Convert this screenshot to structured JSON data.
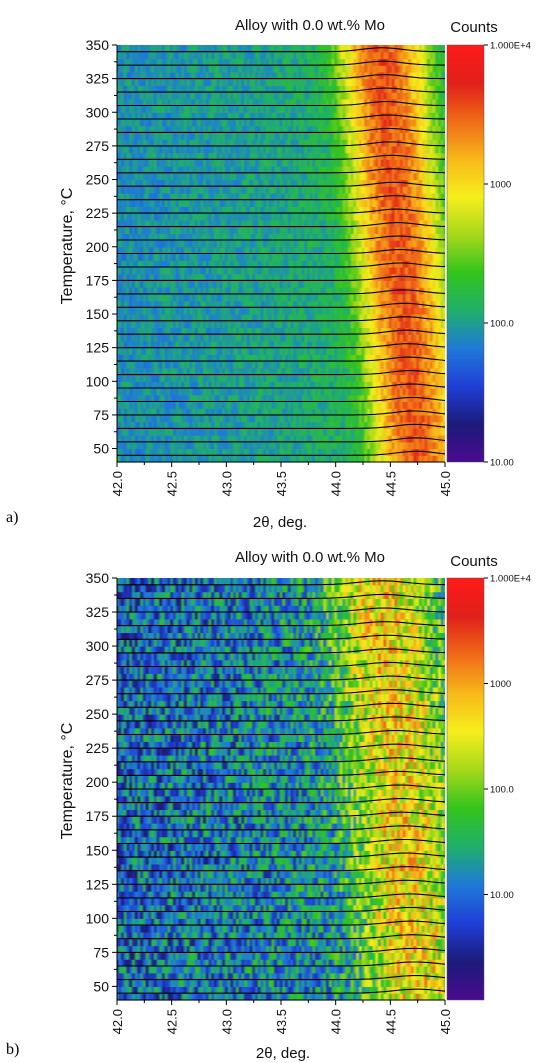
{
  "chart_data": [
    {
      "panel_label": "a)",
      "type": "heatmap",
      "title": "Alloy with 0.0 wt.% Mo",
      "xlabel": "2θ, deg.",
      "ylabel": "Temperature, °C",
      "xlim": [
        42.0,
        45.0
      ],
      "ylim": [
        40,
        350
      ],
      "x_ticks": [
        "42.0",
        "42.5",
        "43.0",
        "43.5",
        "44.0",
        "44.5",
        "45.0"
      ],
      "y_ticks": [
        "50",
        "75",
        "100",
        "125",
        "150",
        "175",
        "200",
        "225",
        "250",
        "275",
        "300",
        "325",
        "350"
      ],
      "y_tick_values": [
        50,
        75,
        100,
        125,
        150,
        175,
        200,
        225,
        250,
        275,
        300,
        325,
        350
      ],
      "colorbar": {
        "title": "Counts",
        "scale": "log",
        "range": [
          10,
          10000
        ],
        "labels": [
          "1.000E+4",
          "1000",
          "100.0",
          "10.00"
        ],
        "label_values": [
          10000,
          1000,
          100,
          10
        ]
      },
      "scan_temperatures": [
        45,
        55,
        65,
        75,
        85,
        95,
        105,
        115,
        125,
        135,
        145,
        155,
        165,
        175,
        185,
        195,
        205,
        215,
        225,
        235,
        245,
        255,
        265,
        275,
        285,
        295,
        305,
        315,
        325,
        335,
        345
      ],
      "peak": {
        "center_at_low_T": 44.75,
        "center_at_high_T": 44.42,
        "width_deg": 0.18,
        "peak_counts": 3000,
        "background_counts": 80
      },
      "grid": false
    },
    {
      "panel_label": "b)",
      "type": "heatmap",
      "title": "Alloy with 0.0 wt.% Mo",
      "xlabel": "2θ, deg.",
      "ylabel": "Temperature, °C",
      "xlim": [
        42.0,
        45.0
      ],
      "ylim": [
        40,
        350
      ],
      "x_ticks": [
        "42.0",
        "42.5",
        "43.0",
        "43.5",
        "44.0",
        "44.5",
        "45.0"
      ],
      "y_ticks": [
        "50",
        "75",
        "100",
        "125",
        "150",
        "175",
        "200",
        "225",
        "250",
        "275",
        "300",
        "325",
        "350"
      ],
      "y_tick_values": [
        50,
        75,
        100,
        125,
        150,
        175,
        200,
        225,
        250,
        275,
        300,
        325,
        350
      ],
      "colorbar": {
        "title": "Counts",
        "scale": "log",
        "range": [
          1,
          10000
        ],
        "labels": [
          "1.000E+4",
          "1000",
          "100.0",
          "10.00"
        ],
        "label_values": [
          10000,
          1000,
          100,
          10
        ]
      },
      "scan_temperatures": [
        45,
        55,
        65,
        75,
        85,
        95,
        105,
        115,
        125,
        135,
        145,
        155,
        165,
        175,
        185,
        195,
        205,
        215,
        225,
        235,
        245,
        255,
        265,
        275,
        285,
        295,
        305,
        315,
        325,
        335,
        345
      ],
      "peak": {
        "center_at_low_T": 44.75,
        "center_at_high_T": 44.42,
        "width_deg": 0.22,
        "peak_counts": 400,
        "background_counts": 8
      },
      "grid": false
    }
  ],
  "colors": {
    "scale": [
      "#4b0a8f",
      "#1b1b7a",
      "#1f3fd6",
      "#1f7ad8",
      "#1fb06a",
      "#34c41c",
      "#a6d81a",
      "#f5ee1c",
      "#f7b81a",
      "#ef6a17",
      "#e0201a",
      "#ff1a1a"
    ],
    "scan_line": "#000000"
  }
}
